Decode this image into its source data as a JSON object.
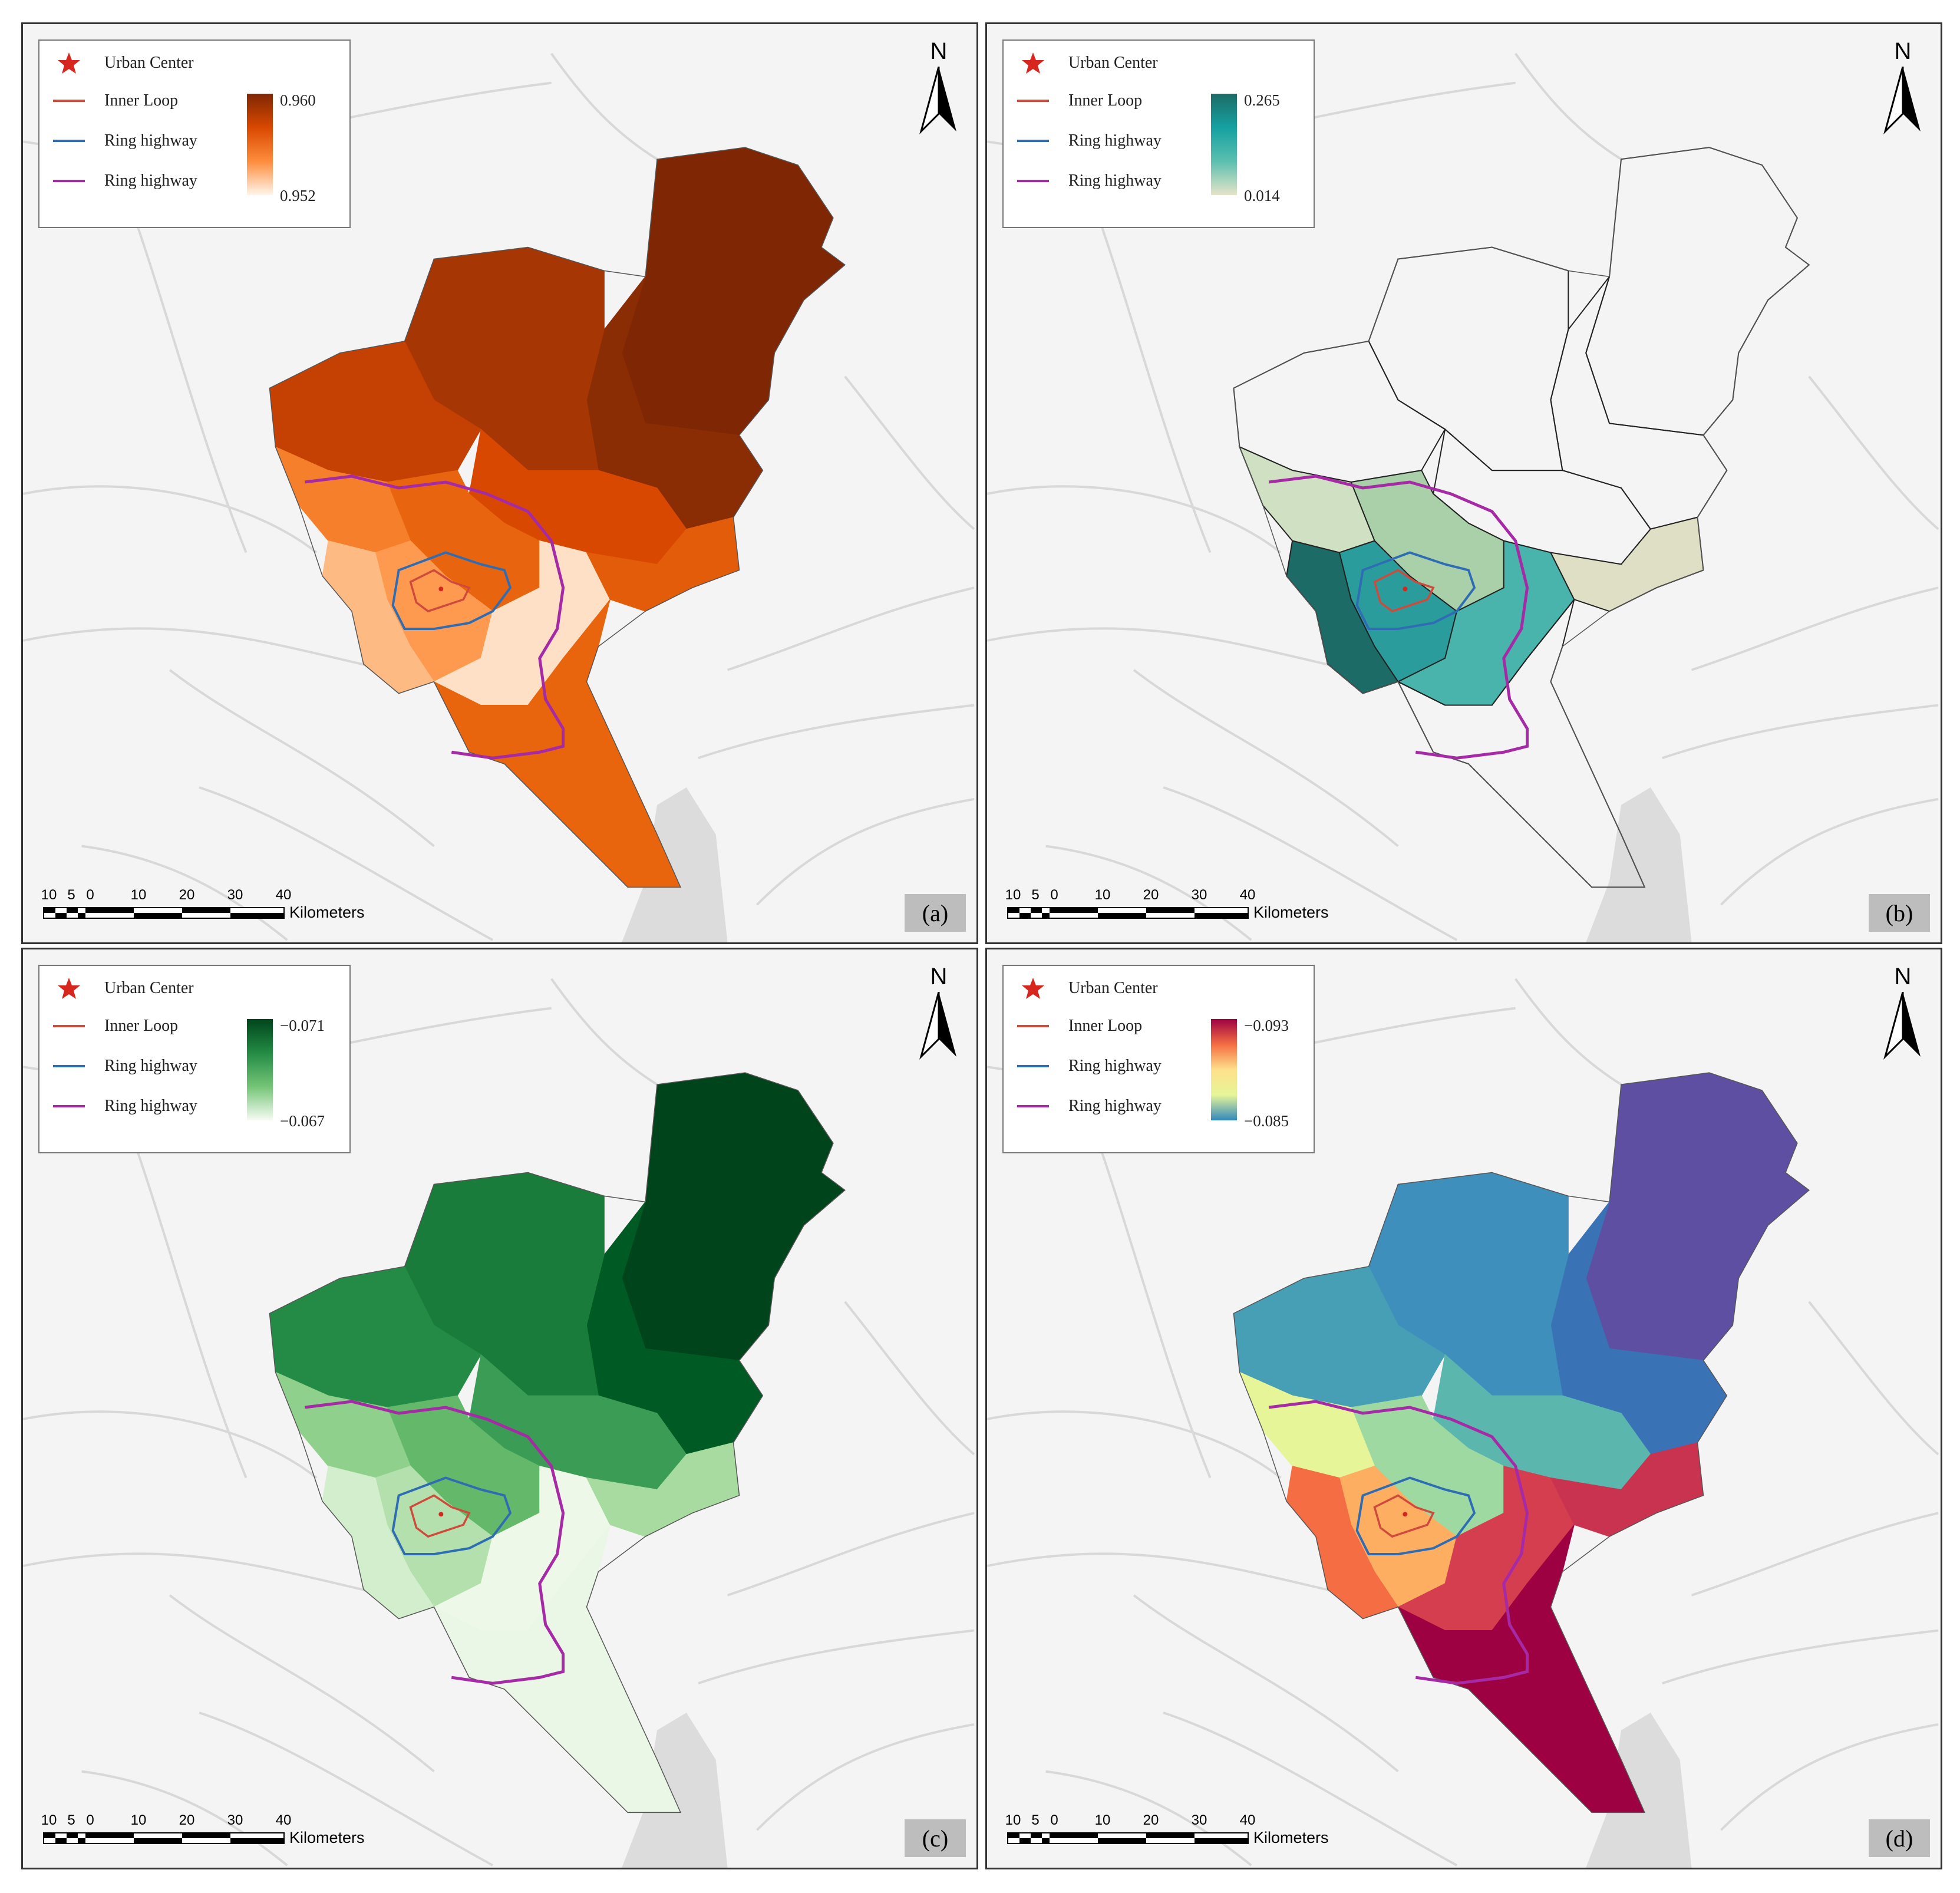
{
  "legend": {
    "urban_center": "Urban Center",
    "inner_loop": "Inner Loop",
    "ring_highway_1": "Ring highway",
    "ring_highway_2": "Ring highway",
    "colors": {
      "urban_center": "#d7261e",
      "inner_loop": "#d04a3c",
      "ring_highway_1": "#2e6db4",
      "ring_highway_2": "#a62aa6"
    }
  },
  "north_arrow": {
    "label": "N"
  },
  "scale_bar": {
    "ticks": [
      "10",
      "5",
      "0",
      "10",
      "20",
      "30",
      "40"
    ],
    "unit": "Kilometers"
  },
  "panels": [
    {
      "tag": "(a)",
      "ramp_max": "0.960",
      "ramp_min": "0.952",
      "ramp_colors": [
        "#7f2704",
        "#d94801",
        "#fd8d3c",
        "#fff5eb"
      ],
      "fills": [
        "#7f2704",
        "#8a2c04",
        "#a63603",
        "#c44103",
        "#d94801",
        "#e8640f",
        "#f57f2a",
        "#fd9a50",
        "#fdba82",
        "#fde0c5",
        "#e25c0a",
        "#e8650e"
      ],
      "show_boundaries": false
    },
    {
      "tag": "(b)",
      "ramp_max": "0.265",
      "ramp_min": "0.014",
      "ramp_colors": [
        "#1d6b66",
        "#15a1a1",
        "#5bbfb0",
        "#e6e4c8"
      ],
      "fills": [
        "none",
        "none",
        "none",
        "none",
        "none",
        "#a9d0a8",
        "#cfe0c3",
        "#2a9c9c",
        "#1d6b66",
        "#49b4ab",
        "#dfdfc6",
        "none"
      ],
      "show_boundaries": true
    },
    {
      "tag": "(c)",
      "ramp_max": "−0.071",
      "ramp_min": "−0.067",
      "ramp_colors": [
        "#00441b",
        "#238b45",
        "#74c476",
        "#f7fcf5"
      ],
      "fills": [
        "#00441b",
        "#005a24",
        "#1a7c3a",
        "#238b45",
        "#3a9c55",
        "#63b86a",
        "#8fd08c",
        "#b3e0ad",
        "#d3eecd",
        "#edf8e9",
        "#a8dba0",
        "#eaf6e6"
      ],
      "show_boundaries": false
    },
    {
      "tag": "(d)",
      "ramp_max": "−0.093",
      "ramp_min": "−0.085",
      "ramp_colors": [
        "#9e0142",
        "#f46d43",
        "#fee08b",
        "#e6f598",
        "#3288bd"
      ],
      "fills": [
        "#5e4fa2",
        "#3a72b6",
        "#3f8fbd",
        "#469fb5",
        "#5bb7ae",
        "#9fd9a2",
        "#e6f598",
        "#fdae61",
        "#f46d43",
        "#d53e4f",
        "#c9334f",
        "#9e0142"
      ],
      "show_boundaries": false
    }
  ]
}
